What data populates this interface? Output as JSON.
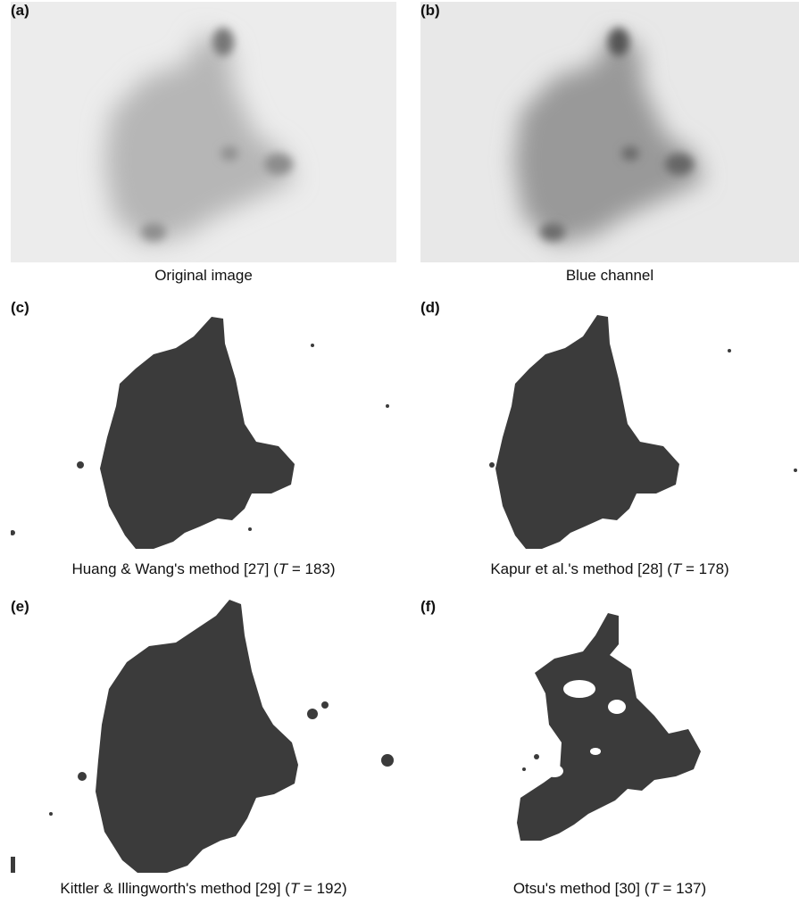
{
  "panels": [
    {
      "label": "(a)",
      "caption": "Original image"
    },
    {
      "label": "(b)",
      "caption": "Blue channel"
    },
    {
      "label": "(c)",
      "caption_pre": "Huang & Wang's method [27] (",
      "T": "T",
      "caption_post": " = 183)"
    },
    {
      "label": "(d)",
      "caption_pre": "Kapur et al.'s method [28] (",
      "T": "T",
      "caption_post": " = 178)"
    },
    {
      "label": "(e)",
      "caption_pre": "Kittler & Illingworth's method [29] (",
      "T": "T",
      "caption_post": " = 192)"
    },
    {
      "label": "(f)",
      "caption_pre": "Otsu's method [30] (",
      "T": "T",
      "caption_post": " = 137)"
    }
  ],
  "colors": {
    "lesion": "#3b3b3b",
    "background_photo": "#e9e9e9",
    "paper": "#ffffff"
  }
}
